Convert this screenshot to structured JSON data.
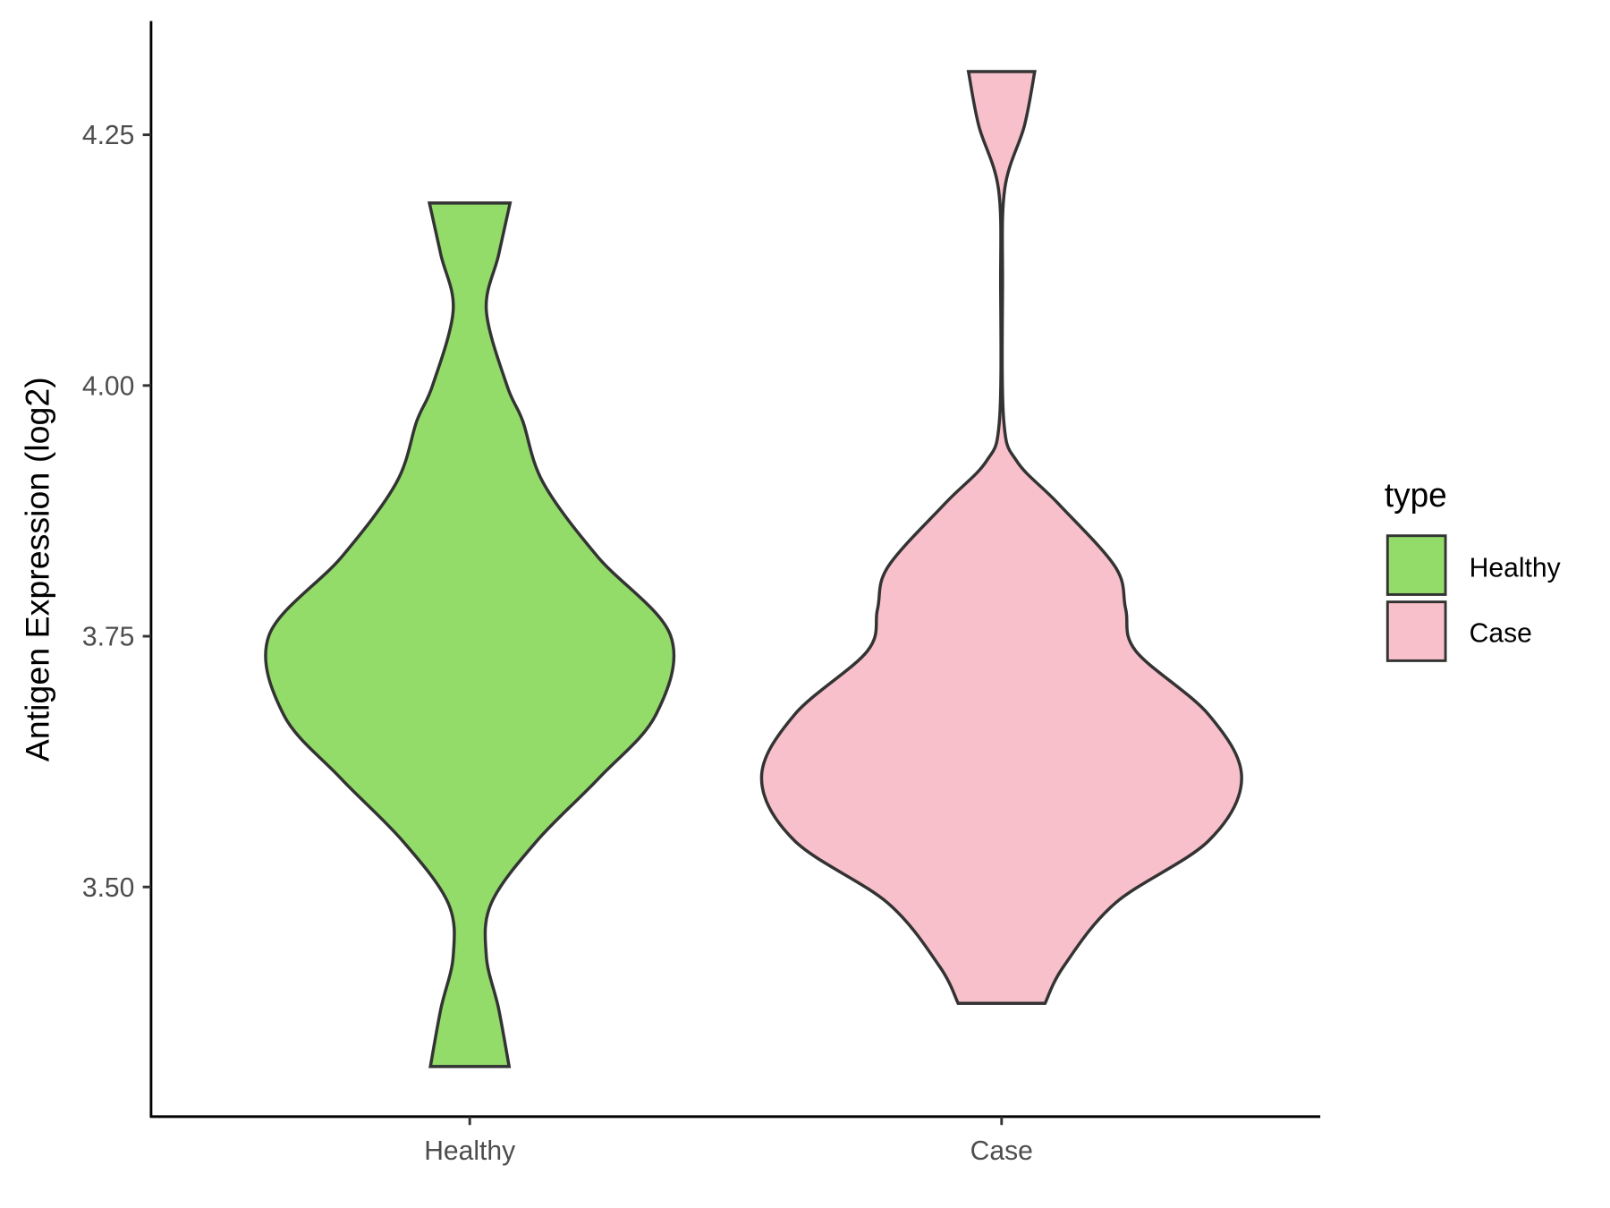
{
  "chart_data": {
    "type": "violin",
    "title": "",
    "xlabel": "",
    "ylabel": "Antigen Expression (log2)",
    "ylim": [
      3.28,
      4.35
    ],
    "yticks": [
      3.5,
      3.75,
      4.0,
      4.25
    ],
    "ytick_labels": [
      "3.50",
      "3.75",
      "4.00",
      "4.25"
    ],
    "categories": [
      "Healthy",
      "Case"
    ],
    "grid": false,
    "legend": {
      "title": "type",
      "placement": "right",
      "entries": [
        "Healthy",
        "Case"
      ]
    },
    "series": [
      {
        "name": "Healthy",
        "color": "#93DC6A",
        "min": 3.321,
        "max": 4.182,
        "density_profile": [
          [
            4.182,
            0.168
          ],
          [
            4.13,
            0.12
          ],
          [
            4.075,
            0.069
          ],
          [
            4.0,
            0.155
          ],
          [
            3.965,
            0.22
          ],
          [
            3.903,
            0.306
          ],
          [
            3.829,
            0.534
          ],
          [
            3.751,
            0.836
          ],
          [
            3.672,
            0.776
          ],
          [
            3.609,
            0.54
          ],
          [
            3.546,
            0.28
          ],
          [
            3.484,
            0.09
          ],
          [
            3.431,
            0.069
          ],
          [
            3.379,
            0.12
          ],
          [
            3.321,
            0.164
          ]
        ]
      },
      {
        "name": "Case",
        "color": "#F8C0CB",
        "min": 3.384,
        "max": 4.313,
        "density_profile": [
          [
            4.313,
            0.138
          ],
          [
            4.259,
            0.095
          ],
          [
            4.196,
            0.013
          ],
          [
            4.1,
            0.004
          ],
          [
            3.965,
            0.009
          ],
          [
            3.924,
            0.065
          ],
          [
            3.882,
            0.237
          ],
          [
            3.819,
            0.474
          ],
          [
            3.777,
            0.517
          ],
          [
            3.735,
            0.56
          ],
          [
            3.672,
            0.862
          ],
          [
            3.609,
            1.0
          ],
          [
            3.546,
            0.862
          ],
          [
            3.484,
            0.474
          ],
          [
            3.421,
            0.259
          ],
          [
            3.384,
            0.181
          ]
        ]
      }
    ],
    "outline_color": "#333333"
  }
}
